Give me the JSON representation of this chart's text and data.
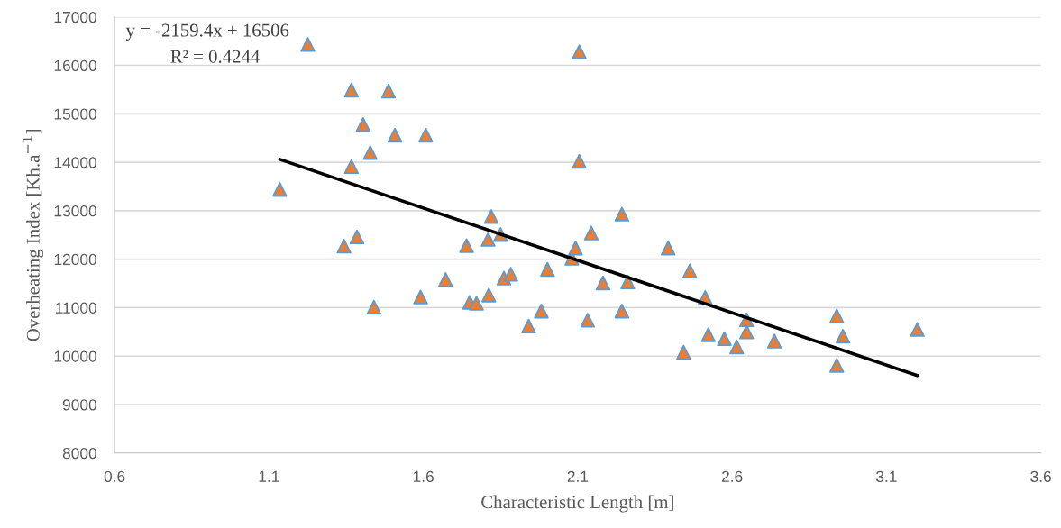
{
  "chart_data": {
    "type": "scatter",
    "xlabel": "Characteristic Length [m]",
    "ylabel": "Overheating Index [Kh.a$^{−1}$]",
    "annotations": [
      "y = -2159.4x + 16506",
      "R² = 0.4244"
    ],
    "xlim": [
      0.6,
      3.6
    ],
    "xticks": [
      0.6,
      1.1,
      1.6,
      2.1,
      2.6,
      3.1,
      3.6
    ],
    "ylim": [
      8000,
      17000
    ],
    "yticks": [
      8000,
      9000,
      10000,
      11000,
      12000,
      13000,
      14000,
      15000,
      16000,
      17000
    ],
    "grid": "y",
    "legend": false,
    "marker": "triangle",
    "series": [
      {
        "color": "#ed7d31",
        "x": [
          1.135,
          1.226,
          1.343,
          1.367,
          1.367,
          1.385,
          1.405,
          1.428,
          1.44,
          1.487,
          1.508,
          1.591,
          1.608,
          1.672,
          1.74,
          1.75,
          1.772,
          1.81,
          1.812,
          1.82,
          1.85,
          1.861,
          1.883,
          1.941,
          1.982,
          2.002,
          2.081,
          2.093,
          2.105,
          2.105,
          2.132,
          2.144,
          2.182,
          2.243,
          2.243,
          2.262,
          2.393,
          2.443,
          2.463,
          2.513,
          2.523,
          2.575,
          2.615,
          2.647,
          2.647,
          2.737,
          2.939,
          2.939,
          2.959,
          3.2
        ],
        "values": [
          13440,
          16430,
          12270,
          15490,
          13910,
          12460,
          14780,
          14200,
          11010,
          15470,
          14560,
          11220,
          14560,
          11580,
          12280,
          11110,
          11090,
          12410,
          11260,
          12880,
          12510,
          11610,
          11690,
          10620,
          10930,
          11790,
          12020,
          12230,
          16280,
          14020,
          10740,
          12540,
          11510,
          12930,
          10930,
          11530,
          12230,
          10080,
          11760,
          11210,
          10440,
          10360,
          10190,
          10750,
          10500,
          10310,
          10830,
          9810,
          10410,
          10550
        ]
      },
      {
        "type": "line",
        "color": "#000000",
        "marker": "none",
        "x": [
          1.135,
          3.2
        ],
        "values": [
          14060,
          9600
        ]
      }
    ]
  }
}
